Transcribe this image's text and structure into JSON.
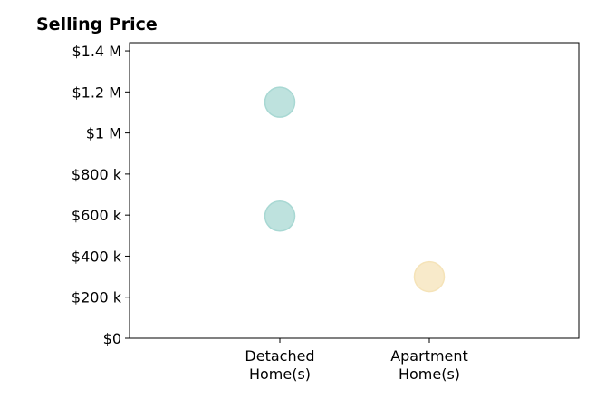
{
  "chart_data": {
    "type": "scatter",
    "title": "Selling Price",
    "xlabel": "",
    "ylabel": "",
    "categories": [
      "Detached Home(s)",
      "Apartment Home(s)"
    ],
    "category_lines": [
      [
        "Detached",
        "Home(s)"
      ],
      [
        "Apartment",
        "Home(s)"
      ]
    ],
    "yticks": [
      0,
      200000,
      400000,
      600000,
      800000,
      1000000,
      1200000,
      1400000
    ],
    "ytick_labels": [
      "$0",
      "$200 k",
      "$400 k",
      "$600 k",
      "$800 k",
      "$1 M",
      "$1.2 M",
      "$1.4 M"
    ],
    "ylim": [
      0,
      1440000
    ],
    "points": [
      {
        "category": "Detached Home(s)",
        "value": 1150000,
        "color": "#a8d8d3"
      },
      {
        "category": "Detached Home(s)",
        "value": 595000,
        "color": "#a8d8d3"
      },
      {
        "category": "Apartment Home(s)",
        "value": 300000,
        "color": "#f5e3b8"
      }
    ],
    "grid": false,
    "legend": "none"
  }
}
